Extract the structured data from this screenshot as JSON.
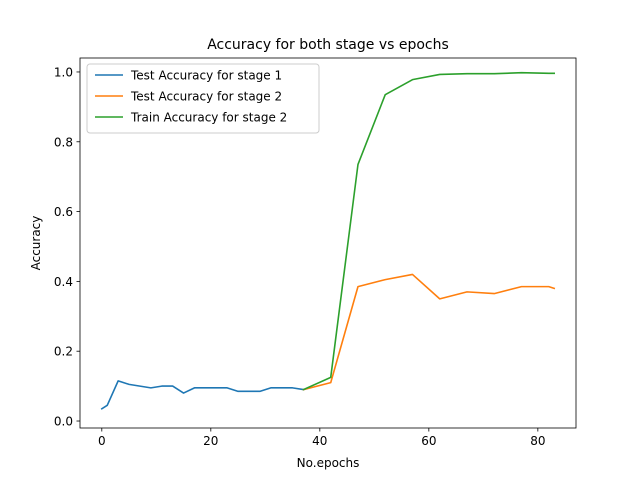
{
  "chart_data": {
    "type": "line",
    "title": "Accuracy for both stage vs epochs",
    "xlabel": "No.epochs",
    "ylabel": "Accuracy",
    "xlim": [
      -4,
      87
    ],
    "ylim": [
      -0.02,
      1.04
    ],
    "xticks": [
      0,
      20,
      40,
      60,
      80
    ],
    "yticks": [
      0.0,
      0.2,
      0.4,
      0.6,
      0.8,
      1.0
    ],
    "xtick_labels": [
      "0",
      "20",
      "40",
      "60",
      "80"
    ],
    "ytick_labels": [
      "0.0",
      "0.2",
      "0.4",
      "0.6",
      "0.8",
      "1.0"
    ],
    "grid": false,
    "legend_position": "top-left",
    "series": [
      {
        "name": "Test Accuracy for stage 1",
        "color": "#1f77b4",
        "x": [
          0,
          1,
          3,
          5,
          7,
          9,
          11,
          13,
          15,
          17,
          19,
          21,
          23,
          25,
          27,
          29,
          31,
          33,
          35,
          37
        ],
        "y": [
          0.035,
          0.045,
          0.115,
          0.105,
          0.1,
          0.095,
          0.1,
          0.1,
          0.08,
          0.095,
          0.095,
          0.095,
          0.095,
          0.085,
          0.085,
          0.085,
          0.095,
          0.095,
          0.095,
          0.09
        ]
      },
      {
        "name": "Test Accuracy for stage 2",
        "color": "#ff7f0e",
        "x": [
          37,
          42,
          47,
          52,
          57,
          62,
          67,
          72,
          77,
          82,
          83
        ],
        "y": [
          0.09,
          0.11,
          0.385,
          0.405,
          0.42,
          0.35,
          0.37,
          0.365,
          0.385,
          0.385,
          0.38
        ]
      },
      {
        "name": "Train Accuracy for stage 2",
        "color": "#2ca02c",
        "x": [
          37,
          42,
          47,
          52,
          57,
          62,
          67,
          72,
          77,
          82,
          83
        ],
        "y": [
          0.09,
          0.125,
          0.735,
          0.935,
          0.978,
          0.993,
          0.995,
          0.995,
          0.998,
          0.996,
          0.996
        ]
      }
    ]
  }
}
